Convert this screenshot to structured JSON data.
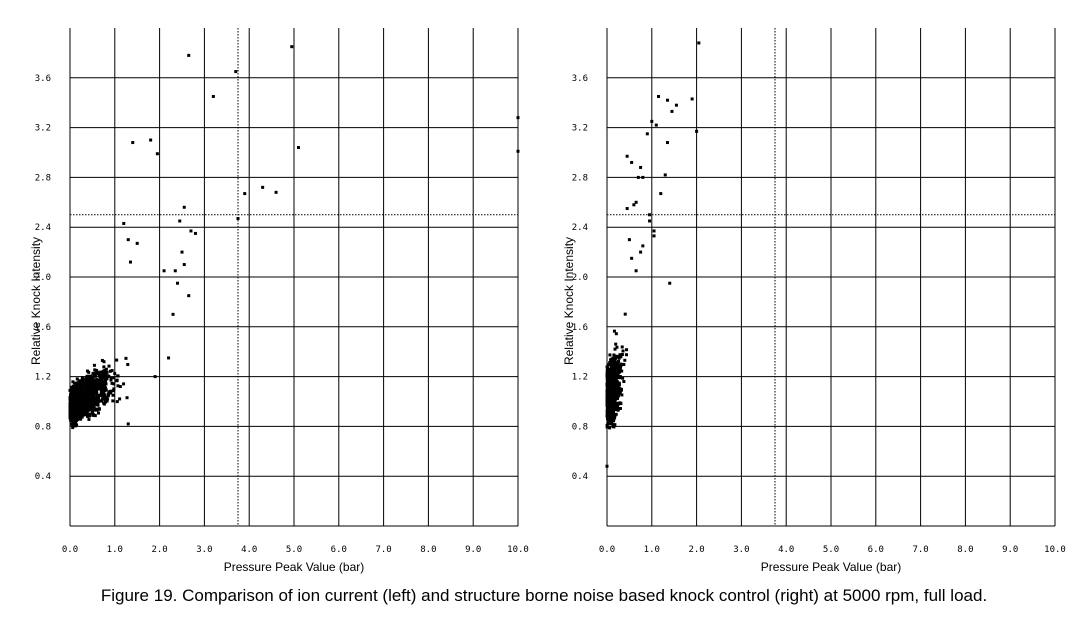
{
  "caption": "Figure 19.  Comparison of ion current (left) and structure borne noise based knock control (right) at 5000 rpm, full load.",
  "chart_data": [
    {
      "type": "scatter",
      "title": "",
      "xlabel": "Pressure Peak Value (bar)",
      "ylabel": "Relative Knock Intensity",
      "xlim": [
        0,
        10
      ],
      "ylim": [
        0,
        4.0
      ],
      "xticks": [
        "0.0",
        "1.0",
        "2.0",
        "3.0",
        "4.0",
        "5.0",
        "6.0",
        "7.0",
        "8.0",
        "9.0",
        "10.0"
      ],
      "yticks": [
        "0.4",
        "0.8",
        "1.2",
        "1.6",
        "2.0",
        "2.4",
        "2.8",
        "3.2",
        "3.6"
      ],
      "grid": true,
      "reference_lines": {
        "vertical_x": 3.75,
        "horizontal_y": 2.5
      },
      "dense_cluster": {
        "x_range": [
          0.0,
          2.1
        ],
        "y_range": [
          0.65,
          2.0
        ]
      },
      "points": [
        [
          2.65,
          3.78
        ],
        [
          3.7,
          3.65
        ],
        [
          4.95,
          3.85
        ],
        [
          3.2,
          3.45
        ],
        [
          1.4,
          3.08
        ],
        [
          1.8,
          3.1
        ],
        [
          1.95,
          2.99
        ],
        [
          5.1,
          3.04
        ],
        [
          3.9,
          2.67
        ],
        [
          4.3,
          2.72
        ],
        [
          4.6,
          2.68
        ],
        [
          3.75,
          2.47
        ],
        [
          10.0,
          3.28
        ],
        [
          10.0,
          3.01
        ],
        [
          2.55,
          2.56
        ],
        [
          2.45,
          2.45
        ],
        [
          2.7,
          2.37
        ],
        [
          2.8,
          2.35
        ],
        [
          1.2,
          2.43
        ],
        [
          2.5,
          2.2
        ],
        [
          2.55,
          2.1
        ],
        [
          2.35,
          2.05
        ],
        [
          1.5,
          2.27
        ],
        [
          1.3,
          2.3
        ],
        [
          1.35,
          2.12
        ],
        [
          2.65,
          1.85
        ],
        [
          2.3,
          1.7
        ],
        [
          1.9,
          1.2
        ],
        [
          2.2,
          1.35
        ],
        [
          1.3,
          0.82
        ],
        [
          2.4,
          1.95
        ],
        [
          2.1,
          2.05
        ]
      ]
    },
    {
      "type": "scatter",
      "title": "",
      "xlabel": "Pressure Peak Value (bar)",
      "ylabel": "Relative Knock Intensity",
      "xlim": [
        0,
        10
      ],
      "ylim": [
        0,
        4.0
      ],
      "xticks": [
        "0.0",
        "1.0",
        "2.0",
        "3.0",
        "4.0",
        "5.0",
        "6.0",
        "7.0",
        "8.0",
        "9.0",
        "10.0"
      ],
      "yticks": [
        "0.4",
        "0.8",
        "1.2",
        "1.6",
        "2.0",
        "2.4",
        "2.8",
        "3.2",
        "3.6"
      ],
      "grid": true,
      "reference_lines": {
        "vertical_x": 3.75,
        "horizontal_y": 2.5
      },
      "dense_cluster": {
        "x_range": [
          0.0,
          1.0
        ],
        "y_range": [
          0.5,
          2.3
        ]
      },
      "points": [
        [
          2.05,
          3.88
        ],
        [
          1.15,
          3.45
        ],
        [
          1.35,
          3.42
        ],
        [
          1.55,
          3.38
        ],
        [
          1.9,
          3.43
        ],
        [
          1.45,
          3.33
        ],
        [
          1.0,
          3.25
        ],
        [
          1.1,
          3.22
        ],
        [
          0.9,
          3.15
        ],
        [
          2.0,
          3.17
        ],
        [
          1.35,
          3.08
        ],
        [
          0.45,
          2.97
        ],
        [
          0.55,
          2.92
        ],
        [
          0.75,
          2.88
        ],
        [
          0.7,
          2.8
        ],
        [
          0.8,
          2.8
        ],
        [
          1.3,
          2.82
        ],
        [
          1.2,
          2.67
        ],
        [
          0.65,
          2.6
        ],
        [
          0.6,
          2.58
        ],
        [
          0.45,
          2.55
        ],
        [
          0.95,
          2.5
        ],
        [
          0.95,
          2.45
        ],
        [
          1.05,
          2.37
        ],
        [
          1.05,
          2.33
        ],
        [
          1.4,
          1.95
        ],
        [
          0.5,
          2.3
        ],
        [
          0.8,
          2.25
        ],
        [
          0.65,
          2.05
        ],
        [
          0.55,
          2.15
        ],
        [
          0.75,
          2.2
        ],
        [
          0.0,
          0.48
        ]
      ]
    }
  ]
}
